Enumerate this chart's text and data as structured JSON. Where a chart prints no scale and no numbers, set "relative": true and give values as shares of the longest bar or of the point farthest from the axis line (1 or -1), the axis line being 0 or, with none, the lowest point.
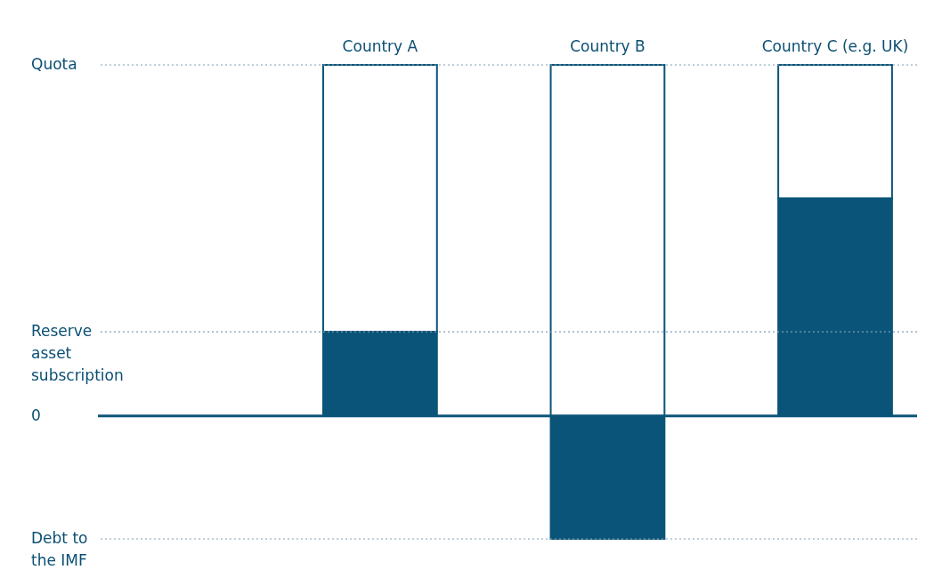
{
  "chart_data": {
    "type": "bar",
    "relative": true,
    "categories": [
      "Country A",
      "Country B",
      "Country C (e.g. UK)"
    ],
    "stacked": true,
    "series": [
      {
        "color": "#0b5479",
        "values": [
          0.24,
          -0.35,
          0.62
        ]
      },
      {
        "color": "#ffffff",
        "values": [
          0.76,
          1,
          0.38
        ]
      }
    ],
    "ref_lines": [
      {
        "axis": "y",
        "value": 1,
        "label": "Quota",
        "line_style": "dotted",
        "color": "#7f9fb3"
      },
      {
        "axis": "y",
        "value": 0.24,
        "label": "Reserve asset subscription",
        "line_style": "dotted",
        "color": "#7f9fb3"
      },
      {
        "axis": "y",
        "value": 0,
        "label": "0",
        "line_style": "solid",
        "color": "#0b5479"
      },
      {
        "axis": "y",
        "value": -0.35,
        "label": "Debt to the IMF",
        "line_style": "dotted",
        "color": "#7f9fb3"
      }
    ]
  }
}
